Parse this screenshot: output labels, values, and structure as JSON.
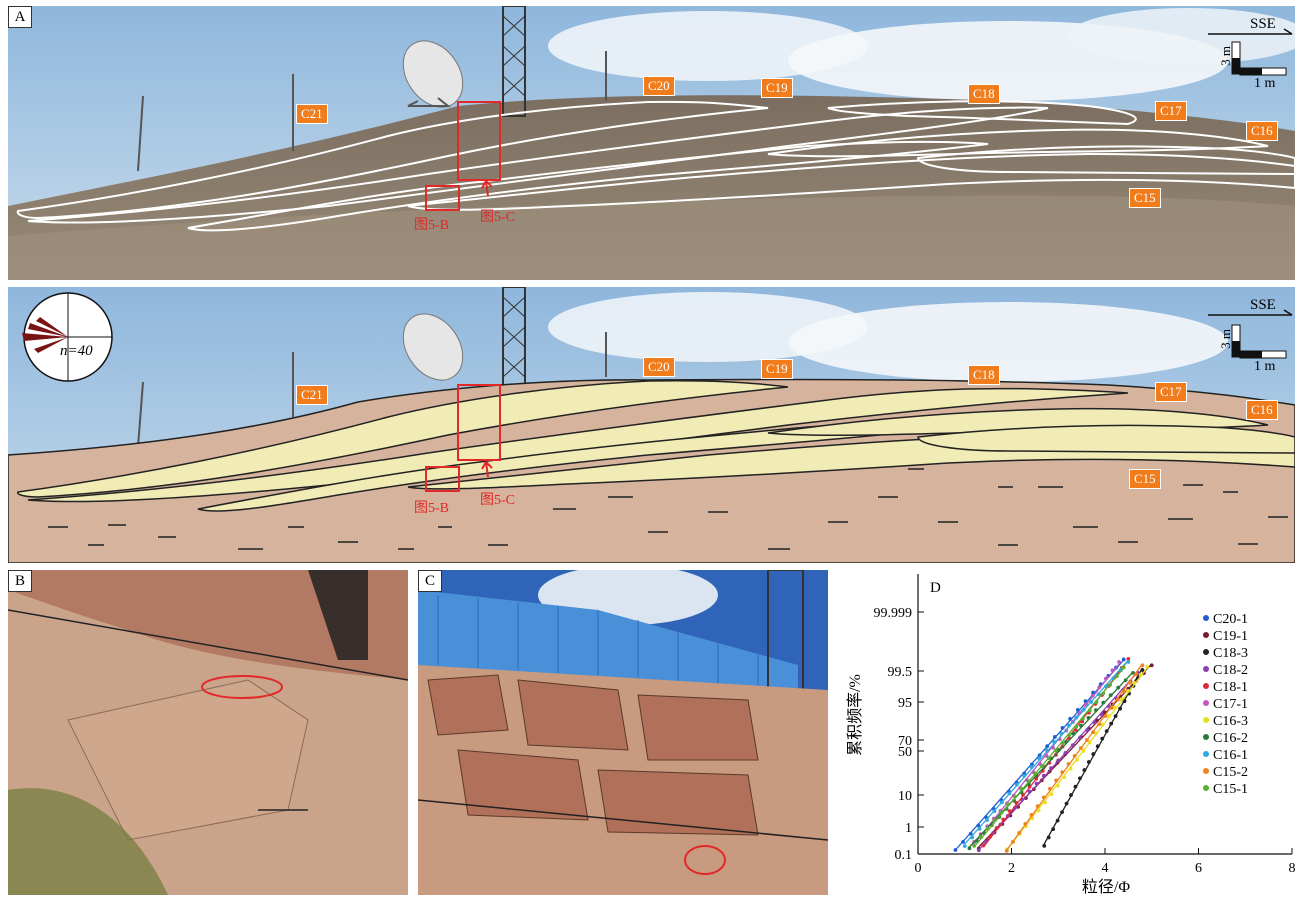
{
  "panel_labels": {
    "a": "A",
    "b": "B",
    "c": "C",
    "d": "D"
  },
  "direction": "SSE",
  "scale": {
    "vertical": "3 m",
    "horizontal": "1 m"
  },
  "rose": {
    "n_label": "n=40"
  },
  "bed_labels": [
    "C21",
    "C20",
    "C19",
    "C18",
    "C17",
    "C16",
    "C15"
  ],
  "figure_refs": {
    "b": "图5-B",
    "c": "图5-C"
  },
  "colors": {
    "tag_orange": "#f07c1c",
    "ref_red": "#e22828",
    "sand": "#f1ebb5",
    "mud": "#d5b39c"
  },
  "chart_data": {
    "type": "scatter",
    "xlabel": "粒径/Φ",
    "ylabel": "累积频率/%",
    "xlim": [
      0,
      8
    ],
    "x_ticks": [
      "0",
      "2",
      "4",
      "6",
      "8"
    ],
    "y_ticks": [
      "0.1",
      "1",
      "10",
      "50",
      "70",
      "95",
      "99.5",
      "99.999"
    ],
    "y_scale": "probability",
    "legend_position": "right",
    "series": [
      {
        "name": "C20-1",
        "color": "#1f5fd0",
        "x0": 0.8,
        "x1": 4.4
      },
      {
        "name": "C19-1",
        "color": "#7a1c2c",
        "x0": 1.3,
        "x1": 5.0
      },
      {
        "name": "C18-3",
        "color": "#222222",
        "x0": 2.7,
        "x1": 4.8
      },
      {
        "name": "C18-2",
        "color": "#8e3fb3",
        "x0": 1.3,
        "x1": 4.7
      },
      {
        "name": "C18-1",
        "color": "#e02a3a",
        "x0": 1.4,
        "x1": 4.5
      },
      {
        "name": "C17-1",
        "color": "#c058c0",
        "x0": 1.2,
        "x1": 4.3
      },
      {
        "name": "C16-3",
        "color": "#e8e020",
        "x0": 1.9,
        "x1": 4.9
      },
      {
        "name": "C16-2",
        "color": "#2a7a3a",
        "x0": 1.1,
        "x1": 4.6
      },
      {
        "name": "C16-1",
        "color": "#30a8e0",
        "x0": 1.0,
        "x1": 4.5
      },
      {
        "name": "C15-2",
        "color": "#f08020",
        "x0": 1.9,
        "x1": 4.8
      },
      {
        "name": "C15-1",
        "color": "#5ab030",
        "x0": 1.2,
        "x1": 4.4
      }
    ]
  }
}
